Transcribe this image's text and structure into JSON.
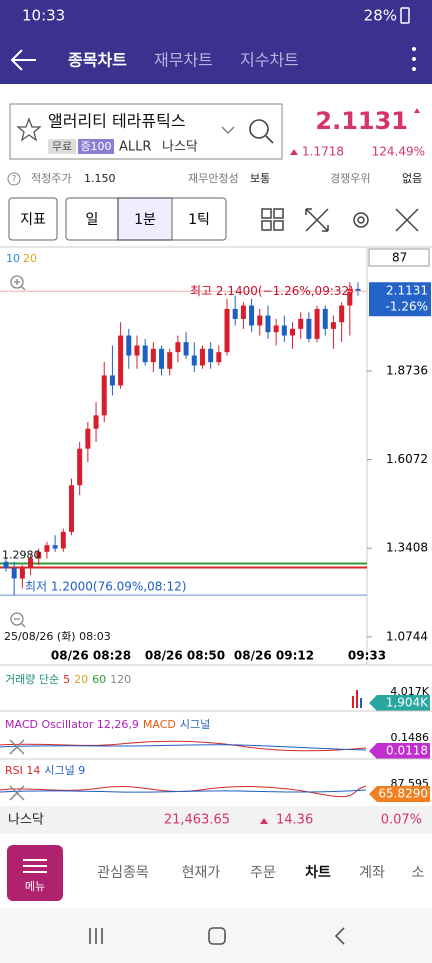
{
  "status": {
    "time": "10:33",
    "battery": "28%"
  },
  "header": {
    "tabs": [
      "종목차트",
      "재무차트",
      "지수차트"
    ]
  },
  "stock": {
    "name": "앨러리티 테라퓨틱스",
    "tags": [
      "무료",
      "증100"
    ],
    "ticker": "ALLR",
    "market": "나스닥",
    "price": "2.1131",
    "change": "1.1718",
    "change_pct": "124.49%"
  },
  "info": {
    "help": "?",
    "fair_label": "적정주가",
    "fair": "1.150",
    "stability_label": "재무안정성",
    "stability": "보통",
    "edge_label": "경쟁우위",
    "edge": "없음"
  },
  "toolbar": {
    "buttons": [
      "지표",
      "일",
      "1분",
      "1틱"
    ]
  },
  "chart": {
    "ma_legend": [
      "10",
      "20"
    ],
    "count": "87",
    "ylim": [
      1.05,
      2.237
    ],
    "yticks": [
      1.8736,
      1.6072,
      1.3408,
      1.0744
    ],
    "last_price": "2.1131",
    "last_pct": "-1.26%",
    "high_note": "최고 2.1400(−1.26%,09:32)",
    "low_note": "최저 1.2000(76.09%,08:12)",
    "low_value": 1.2,
    "open_note": "1.2980",
    "level_lines": [
      {
        "value": 1.295,
        "color": "#2e9b3a"
      },
      {
        "value": 1.283,
        "color": "#d62828"
      }
    ],
    "start_date": "25/08/26 (화) 08:03",
    "time_labels": [
      "08/26 08:28",
      "08/26 08:50",
      "08/26 09:12",
      "09:33"
    ],
    "up_color": "#d81e2c",
    "down_color": "#1f5fc4",
    "candles": [
      [
        1.3,
        1.31,
        1.27,
        1.28
      ],
      [
        1.28,
        1.3,
        1.2,
        1.25
      ],
      [
        1.25,
        1.29,
        1.22,
        1.28
      ],
      [
        1.28,
        1.32,
        1.26,
        1.31
      ],
      [
        1.31,
        1.34,
        1.29,
        1.33
      ],
      [
        1.33,
        1.36,
        1.31,
        1.35
      ],
      [
        1.35,
        1.38,
        1.33,
        1.34
      ],
      [
        1.34,
        1.4,
        1.33,
        1.39
      ],
      [
        1.39,
        1.55,
        1.38,
        1.53
      ],
      [
        1.53,
        1.66,
        1.5,
        1.64
      ],
      [
        1.64,
        1.72,
        1.6,
        1.7
      ],
      [
        1.7,
        1.78,
        1.66,
        1.74
      ],
      [
        1.74,
        1.9,
        1.72,
        1.86
      ],
      [
        1.86,
        1.95,
        1.8,
        1.83
      ],
      [
        1.83,
        2.02,
        1.82,
        1.98
      ],
      [
        1.98,
        2.0,
        1.88,
        1.92
      ],
      [
        1.92,
        1.98,
        1.88,
        1.95
      ],
      [
        1.95,
        1.97,
        1.89,
        1.9
      ],
      [
        1.9,
        1.96,
        1.87,
        1.94
      ],
      [
        1.94,
        1.95,
        1.86,
        1.88
      ],
      [
        1.88,
        1.94,
        1.86,
        1.93
      ],
      [
        1.93,
        1.98,
        1.9,
        1.96
      ],
      [
        1.96,
        1.99,
        1.91,
        1.92
      ],
      [
        1.92,
        1.96,
        1.87,
        1.89
      ],
      [
        1.89,
        1.95,
        1.88,
        1.94
      ],
      [
        1.94,
        1.96,
        1.88,
        1.9
      ],
      [
        1.9,
        1.95,
        1.89,
        1.93
      ],
      [
        1.93,
        2.09,
        1.92,
        2.06
      ],
      [
        2.06,
        2.1,
        2.01,
        2.03
      ],
      [
        2.03,
        2.08,
        2.0,
        2.07
      ],
      [
        2.07,
        2.09,
        1.99,
        2.01
      ],
      [
        2.01,
        2.06,
        1.98,
        2.04
      ],
      [
        2.04,
        2.07,
        1.97,
        1.99
      ],
      [
        1.99,
        2.03,
        1.95,
        2.01
      ],
      [
        2.01,
        2.04,
        1.96,
        1.98
      ],
      [
        1.98,
        2.02,
        1.94,
        2.0
      ],
      [
        2.0,
        2.05,
        1.97,
        2.03
      ],
      [
        2.03,
        2.05,
        1.96,
        1.97
      ],
      [
        1.97,
        2.07,
        1.96,
        2.06
      ],
      [
        2.06,
        2.07,
        1.98,
        2.0
      ],
      [
        2.0,
        2.04,
        1.94,
        2.02
      ],
      [
        2.02,
        2.08,
        1.96,
        2.07
      ],
      [
        2.07,
        2.14,
        1.98,
        2.12
      ],
      [
        2.12,
        2.14,
        2.1,
        2.1131
      ]
    ]
  },
  "volume": {
    "label": "거래량 단순",
    "periods": [
      "5",
      "20",
      "60",
      "120"
    ],
    "max": "4.017K",
    "last": "1,904K"
  },
  "macd": {
    "label": "MACD Oscillator 12,26,9",
    "macd": "MACD",
    "signal": "시그널",
    "top": "0.1486",
    "last": "0.0118"
  },
  "rsi": {
    "label": "RSI 14",
    "signal": "시그널 9",
    "top": "87.595",
    "last": "65.8290"
  },
  "index_bar": {
    "name": "나스닥",
    "value": "21,463.65",
    "change": "14.36",
    "pct": "0.07%"
  },
  "nav": {
    "menu": "메뉴",
    "items": [
      "관심종목",
      "현재가",
      "주문",
      "차트",
      "계좌",
      "소"
    ]
  }
}
